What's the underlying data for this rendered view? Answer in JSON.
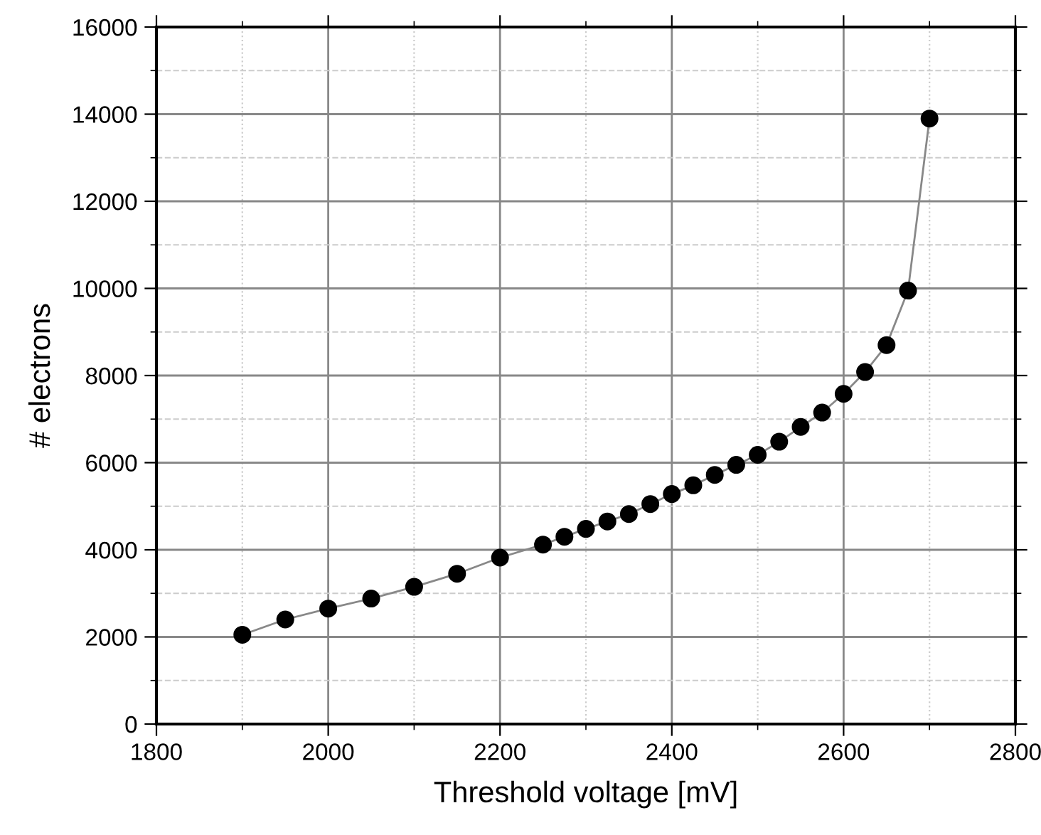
{
  "chart_data": {
    "type": "line",
    "xlabel": "Threshold voltage [mV]",
    "ylabel": "# electrons",
    "x": [
      1900,
      1950,
      2000,
      2050,
      2100,
      2150,
      2200,
      2250,
      2275,
      2300,
      2325,
      2350,
      2375,
      2400,
      2425,
      2450,
      2475,
      2500,
      2525,
      2550,
      2575,
      2600,
      2625,
      2650,
      2675,
      2700
    ],
    "series": [
      {
        "color": "#000000",
        "values": [
          2050,
          2400,
          2650,
          2880,
          3150,
          3450,
          3820,
          4120,
          4300,
          4480,
          4650,
          4820,
          5050,
          5280,
          5480,
          5720,
          5950,
          6180,
          6480,
          6820,
          7150,
          7580,
          8080,
          8700,
          9950,
          13900
        ]
      }
    ],
    "marker": "circle",
    "line_style": "solid",
    "xlim": [
      1800,
      2800
    ],
    "xticks": [
      1800,
      2000,
      2200,
      2400,
      2600,
      2800
    ],
    "ylim": [
      0,
      16000
    ],
    "yticks": [
      0,
      2000,
      4000,
      6000,
      8000,
      10000,
      12000,
      14000,
      16000
    ],
    "grid": true
  }
}
